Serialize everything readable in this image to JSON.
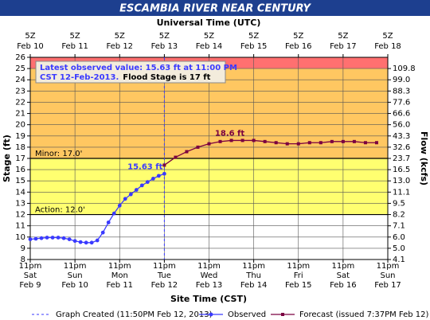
{
  "chart_data": {
    "type": "line",
    "title": "ESCAMBIA RIVER NEAR CENTURY",
    "top_axis_label": "Universal Time (UTC)",
    "xlabel": "Site Time (CST)",
    "ylabel": "Stage (ft)",
    "y2label": "Flow (kcfs)",
    "xlim": [
      0,
      8
    ],
    "xticks": [
      {
        "value": 0,
        "label": "11pm"
      },
      {
        "value": 1,
        "label": "11pm"
      },
      {
        "value": 2,
        "label": "11pm"
      },
      {
        "value": 3,
        "label": "11pm"
      },
      {
        "value": 4,
        "label": "11pm"
      },
      {
        "value": 5,
        "label": "11pm"
      },
      {
        "value": 6,
        "label": "11pm"
      },
      {
        "value": 7,
        "label": "11pm"
      },
      {
        "value": 8,
        "label": "11pm"
      }
    ],
    "x_day_labels": [
      "Sat",
      "Sun",
      "Mon",
      "Tue",
      "Wed",
      "Thu",
      "Fri",
      "Sat",
      "Sun"
    ],
    "x_date_labels": [
      "Feb 9",
      "Feb 10",
      "Feb 11",
      "Feb 12",
      "Feb 13",
      "Feb 14",
      "Feb 15",
      "Feb 16",
      "Feb 17"
    ],
    "top_tick_labels": [
      "5Z",
      "5Z",
      "5Z",
      "5Z",
      "5Z",
      "5Z",
      "5Z",
      "5Z",
      "5Z"
    ],
    "top_date_labels": [
      "Feb 10",
      "Feb 11",
      "Feb 12",
      "Feb 13",
      "Feb 14",
      "Feb 15",
      "Feb 16",
      "Feb 17",
      "Feb 18"
    ],
    "ylim": [
      8,
      26
    ],
    "yticks": [
      8,
      9,
      10,
      11,
      12,
      13,
      14,
      15,
      16,
      17,
      18,
      19,
      20,
      21,
      22,
      23,
      24,
      25,
      26
    ],
    "y2ticks": [
      {
        "stage": 25,
        "value": 109.8,
        "label": "109.8"
      },
      {
        "stage": 24,
        "value": 99,
        "label": "99.0"
      },
      {
        "stage": 23,
        "value": 88.3,
        "label": "88.3"
      },
      {
        "stage": 22,
        "value": 77.6,
        "label": "77.6"
      },
      {
        "stage": 21,
        "value": 66.6,
        "label": "66.6"
      },
      {
        "stage": 20,
        "value": 56,
        "label": "56.0"
      },
      {
        "stage": 19,
        "value": 43.3,
        "label": "43.3"
      },
      {
        "stage": 18,
        "value": 32.6,
        "label": "32.6"
      },
      {
        "stage": 17,
        "value": 23.7,
        "label": "23.7"
      },
      {
        "stage": 16,
        "value": 16.5,
        "label": "16.5"
      },
      {
        "stage": 15,
        "value": 13,
        "label": "13.0"
      },
      {
        "stage": 14,
        "value": 11.1,
        "label": "11.1"
      },
      {
        "stage": 13,
        "value": 9.5,
        "label": "9.5"
      },
      {
        "stage": 12,
        "value": 8.2,
        "label": "8.2"
      },
      {
        "stage": 11,
        "value": 7.1,
        "label": "7.1"
      },
      {
        "stage": 10,
        "value": 6,
        "label": "6.0"
      },
      {
        "stage": 9,
        "value": 5,
        "label": "5.0"
      },
      {
        "stage": 8,
        "value": 4.1,
        "label": "4.1"
      }
    ],
    "grid": true,
    "bands": [
      {
        "from": 25,
        "to": 26,
        "color": "#ff7070"
      },
      {
        "from": 17,
        "to": 25,
        "color": "#ffc761"
      },
      {
        "from": 12,
        "to": 17,
        "color": "#ffff70"
      }
    ],
    "thresholds": [
      {
        "label": "Minor: 17.0'",
        "value": 17
      },
      {
        "label": "Action: 12.0'",
        "value": 12
      }
    ],
    "created": {
      "name": "Graph Created (11:50PM Feb 12, 2013)",
      "x": 3,
      "color": "#3a3aff"
    },
    "annotation": {
      "line1": "Latest observed value: 15.63  ft at 11:00 PM",
      "line2": "CST 12-Feb-2013.",
      "line2b": "Flood Stage is 17 ft"
    },
    "point_labels": [
      {
        "label": "15.63 ft",
        "x": 3,
        "y": 15.63,
        "color": "#3a3aff"
      },
      {
        "label": "18.6 ft",
        "x": 4.5,
        "y": 18.6,
        "color": "#7a0040"
      }
    ],
    "series": [
      {
        "name": "Observed",
        "color": "#3a3aff",
        "marker": "circle",
        "x": [
          0,
          0.125,
          0.25,
          0.375,
          0.5,
          0.625,
          0.75,
          0.875,
          1,
          1.125,
          1.25,
          1.375,
          1.5,
          1.625,
          1.75,
          1.875,
          2,
          2.125,
          2.25,
          2.375,
          2.5,
          2.625,
          2.75,
          2.875,
          3
        ],
        "values": [
          9.8,
          9.85,
          9.9,
          9.95,
          9.95,
          9.95,
          9.9,
          9.8,
          9.65,
          9.55,
          9.5,
          9.5,
          9.7,
          10.4,
          11.3,
          12.1,
          12.8,
          13.4,
          13.8,
          14.2,
          14.6,
          14.9,
          15.2,
          15.45,
          15.63
        ]
      },
      {
        "name": "Forecast (issued 7:37PM Feb 12)",
        "color": "#7a0040",
        "marker": "square",
        "x": [
          3,
          3.25,
          3.5,
          3.75,
          4,
          4.25,
          4.5,
          4.75,
          5,
          5.25,
          5.5,
          5.75,
          6,
          6.25,
          6.5,
          6.75,
          7,
          7.25,
          7.5,
          7.75
        ],
        "values": [
          16.4,
          17.1,
          17.6,
          18,
          18.3,
          18.5,
          18.6,
          18.6,
          18.6,
          18.5,
          18.4,
          18.3,
          18.3,
          18.4,
          18.4,
          18.5,
          18.5,
          18.5,
          18.4,
          18.4
        ]
      }
    ]
  }
}
